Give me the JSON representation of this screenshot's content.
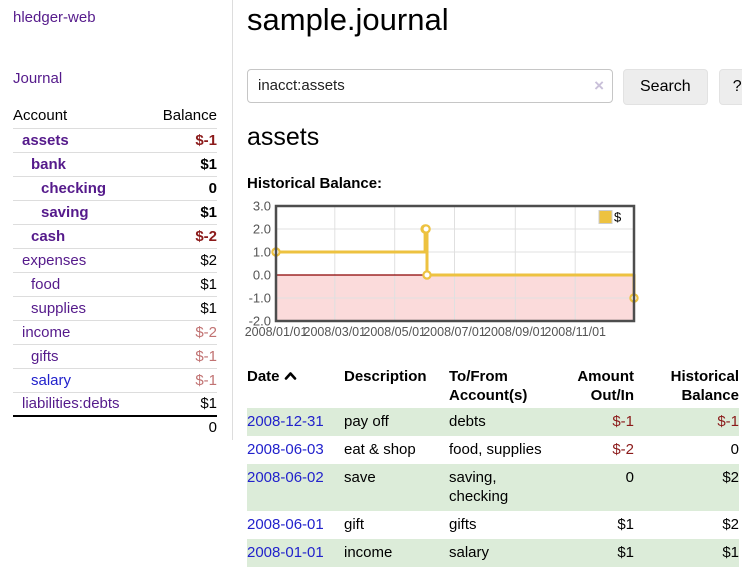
{
  "app": {
    "title": "hledger-web"
  },
  "sidebar": {
    "nav": {
      "journal_label": "Journal"
    },
    "accounts": {
      "headers": [
        "Account",
        "Balance"
      ],
      "rows": [
        {
          "name": "assets",
          "indent": 1,
          "bold": true,
          "balance": "$-1",
          "balance_style": "neg-bold"
        },
        {
          "name": "bank",
          "indent": 2,
          "bold": true,
          "balance": "$1",
          "balance_style": "pos"
        },
        {
          "name": "checking",
          "indent": 3,
          "bold": true,
          "balance": "0",
          "balance_style": "pos"
        },
        {
          "name": "saving",
          "indent": 3,
          "bold": true,
          "balance": "$1",
          "balance_style": "pos"
        },
        {
          "name": "cash",
          "indent": 2,
          "bold": true,
          "balance": "$-2",
          "balance_style": "neg-bold"
        },
        {
          "name": "expenses",
          "indent": 1,
          "bold": false,
          "balance": "$2",
          "balance_style": "pos"
        },
        {
          "name": "food",
          "indent": 2,
          "bold": false,
          "balance": "$1",
          "balance_style": "pos"
        },
        {
          "name": "supplies",
          "indent": 2,
          "bold": false,
          "balance": "$1",
          "balance_style": "pos"
        },
        {
          "name": "income",
          "indent": 1,
          "bold": false,
          "balance": "$-2",
          "balance_style": "neg-light"
        },
        {
          "name": "gifts",
          "indent": 2,
          "bold": false,
          "balance": "$-1",
          "balance_style": "neg-light"
        },
        {
          "name": "salary",
          "indent": 2,
          "bold": false,
          "link_color": "blue",
          "balance": "$-1",
          "balance_style": "neg-light"
        },
        {
          "name": "liabilities:debts",
          "indent": 1,
          "bold": false,
          "balance": "$1",
          "balance_style": "pos"
        }
      ],
      "total": "0"
    }
  },
  "header": {
    "title": "sample.journal"
  },
  "search": {
    "query": "inacct:assets",
    "clear_icon": "×",
    "button_label": "Search",
    "help_label": "?"
  },
  "main": {
    "account_heading": "assets",
    "chart_label": "Historical Balance:"
  },
  "chart_data": {
    "type": "line",
    "step": true,
    "title": "Historical Balance",
    "series": [
      {
        "name": "$",
        "color": "#edc240",
        "points": [
          [
            "2008-01-01",
            1.0
          ],
          [
            "2008-06-01",
            2.0
          ],
          [
            "2008-06-02",
            2.0
          ],
          [
            "2008-06-03",
            0.0
          ],
          [
            "2008-12-31",
            -1.0
          ]
        ]
      }
    ],
    "x_range": [
      "2008-01-01",
      "2008-12-31"
    ],
    "ylim": [
      -2.0,
      3.0
    ],
    "yticks": [
      "3.0",
      "2.0",
      "1.0",
      "0.0",
      "-1.0",
      "-2.0"
    ],
    "xticks": [
      "2008/01/01",
      "2008/03/01",
      "2008/05/01",
      "2008/07/01",
      "2008/09/01",
      "2008/11/01"
    ],
    "grid": true,
    "legend_position": "top-right",
    "colors": {
      "negative_region": "#fbdbdb",
      "zero_line": "#8b0000",
      "grid_line": "#e0e0e0",
      "border": "#4d4d4d",
      "tick_text": "#545454"
    }
  },
  "register": {
    "columns": [
      "Date",
      "Description",
      "To/From Account(s)",
      "Amount Out/In",
      "Historical Balance"
    ],
    "sort_icon": "chevron-up",
    "rows": [
      {
        "date": "2008-12-31",
        "description": "pay off",
        "accounts": "debts",
        "amount": "$-1",
        "amount_neg": true,
        "balance": "$-1",
        "balance_neg": true,
        "shaded": true
      },
      {
        "date": "2008-06-03",
        "description": "eat & shop",
        "accounts": "food, supplies",
        "amount": "$-2",
        "amount_neg": true,
        "balance": "0",
        "balance_neg": false,
        "shaded": false
      },
      {
        "date": "2008-06-02",
        "description": "save",
        "accounts": "saving, checking",
        "amount": "0",
        "amount_neg": false,
        "balance": "$2",
        "balance_neg": false,
        "shaded": true
      },
      {
        "date": "2008-06-01",
        "description": "gift",
        "accounts": "gifts",
        "amount": "$1",
        "amount_neg": false,
        "balance": "$2",
        "balance_neg": false,
        "shaded": false
      },
      {
        "date": "2008-01-01",
        "description": "income",
        "accounts": "salary",
        "amount": "$1",
        "amount_neg": false,
        "balance": "$1",
        "balance_neg": false,
        "shaded": true
      }
    ]
  }
}
